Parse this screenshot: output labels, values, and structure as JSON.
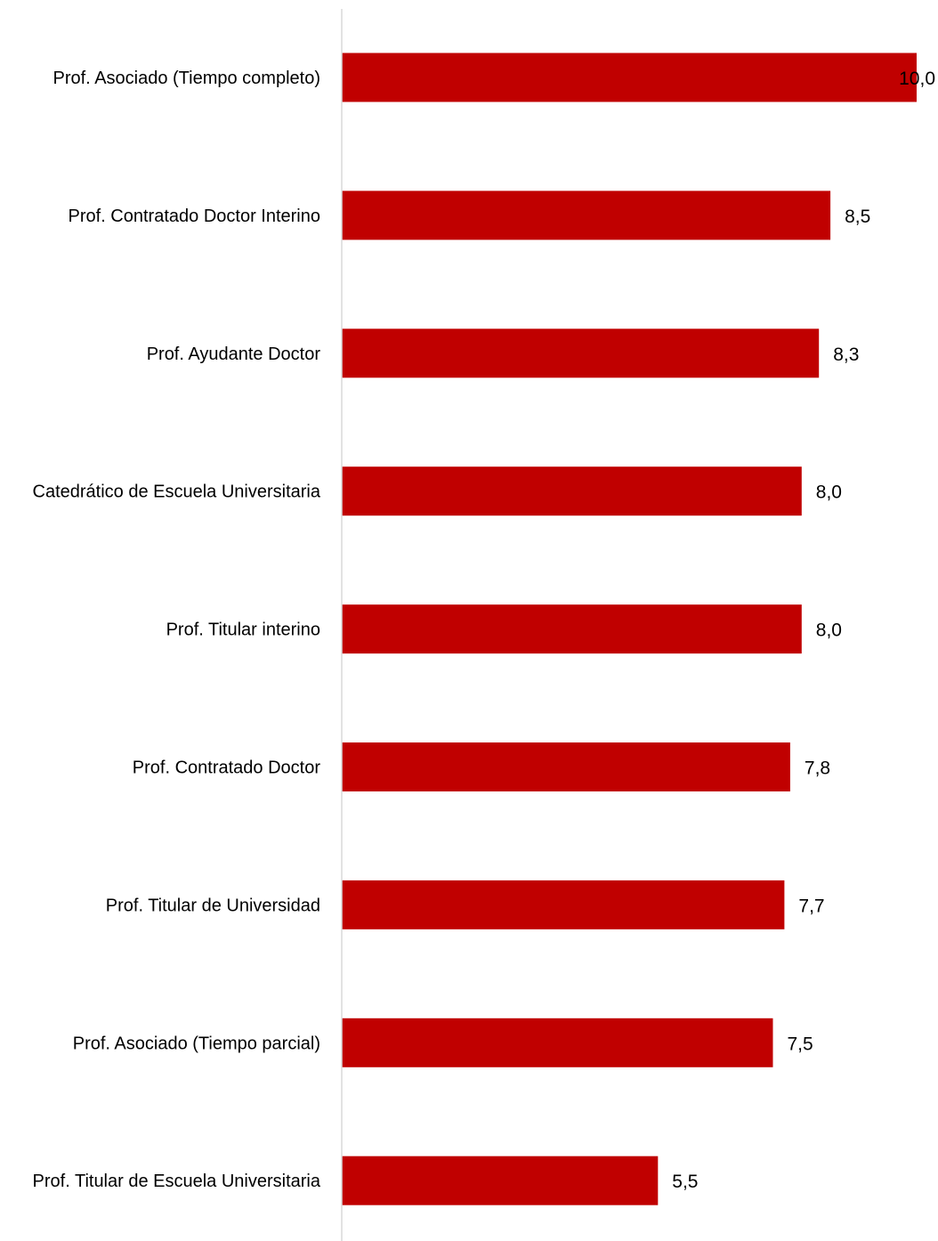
{
  "chart_data": {
    "type": "bar",
    "orientation": "horizontal",
    "title": "",
    "xlabel": "",
    "ylabel": "",
    "categories": [
      "Prof. Asociado (Tiempo completo)",
      "Prof. Contratado Doctor Interino",
      "Prof. Ayudante Doctor",
      "Catedrático de Escuela Universitaria",
      "Prof. Titular interino",
      "Prof. Contratado Doctor",
      "Prof. Titular de Universidad",
      "Prof. Asociado (Tiempo parcial)",
      "Prof. Titular de Escuela Universitaria"
    ],
    "values": [
      10.0,
      8.5,
      8.3,
      8.0,
      8.0,
      7.8,
      7.7,
      7.5,
      5.5
    ],
    "value_labels": [
      "10,0",
      "8,5",
      "8,3",
      "8,0",
      "8,0",
      "7,8",
      "7,7",
      "7,5",
      "5,5"
    ],
    "xlim": [
      0,
      10
    ],
    "grid": false,
    "legend": "none",
    "bar_color": "#c00000",
    "axis_color": "#d9d9d9"
  }
}
